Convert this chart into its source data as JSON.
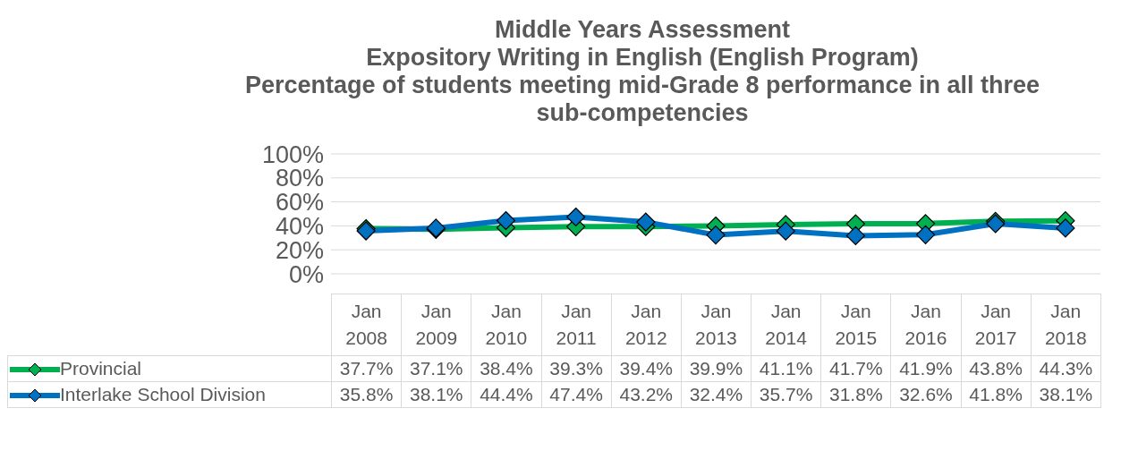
{
  "chart_data": {
    "type": "line",
    "title": "Middle Years Assessment\nExpository Writing in English (English Program)\nPercentage of students meeting mid-Grade 8 performance in all three sub-competencies",
    "categories": [
      "Jan 2008",
      "Jan 2009",
      "Jan 2010",
      "Jan 2011",
      "Jan 2012",
      "Jan 2013",
      "Jan 2014",
      "Jan 2015",
      "Jan 2016",
      "Jan 2017",
      "Jan 2018"
    ],
    "series": [
      {
        "name": "Provincial",
        "color": "#00b050",
        "values": [
          37.7,
          37.1,
          38.4,
          39.3,
          39.4,
          39.9,
          41.1,
          41.7,
          41.9,
          43.8,
          44.3
        ],
        "value_labels": [
          "37.7%",
          "37.1%",
          "38.4%",
          "39.3%",
          "39.4%",
          "39.9%",
          "41.1%",
          "41.7%",
          "41.9%",
          "43.8%",
          "44.3%"
        ]
      },
      {
        "name": "Interlake School Division",
        "color": "#0070c0",
        "values": [
          35.8,
          38.1,
          44.4,
          47.4,
          43.2,
          32.4,
          35.7,
          31.8,
          32.6,
          41.8,
          38.1
        ],
        "value_labels": [
          "35.8%",
          "38.1%",
          "44.4%",
          "47.4%",
          "43.2%",
          "32.4%",
          "35.7%",
          "31.8%",
          "32.6%",
          "41.8%",
          "38.1%"
        ]
      }
    ],
    "ylim": [
      0,
      100
    ],
    "yticks": [
      {
        "value": 0,
        "label": "0%"
      },
      {
        "value": 20,
        "label": "20%"
      },
      {
        "value": 40,
        "label": "40%"
      },
      {
        "value": 60,
        "label": "60%"
      },
      {
        "value": 80,
        "label": "80%"
      },
      {
        "value": 100,
        "label": "100%"
      }
    ],
    "grid": "y",
    "legend": "bottom",
    "marker": "diamond",
    "line_style": "solid"
  }
}
